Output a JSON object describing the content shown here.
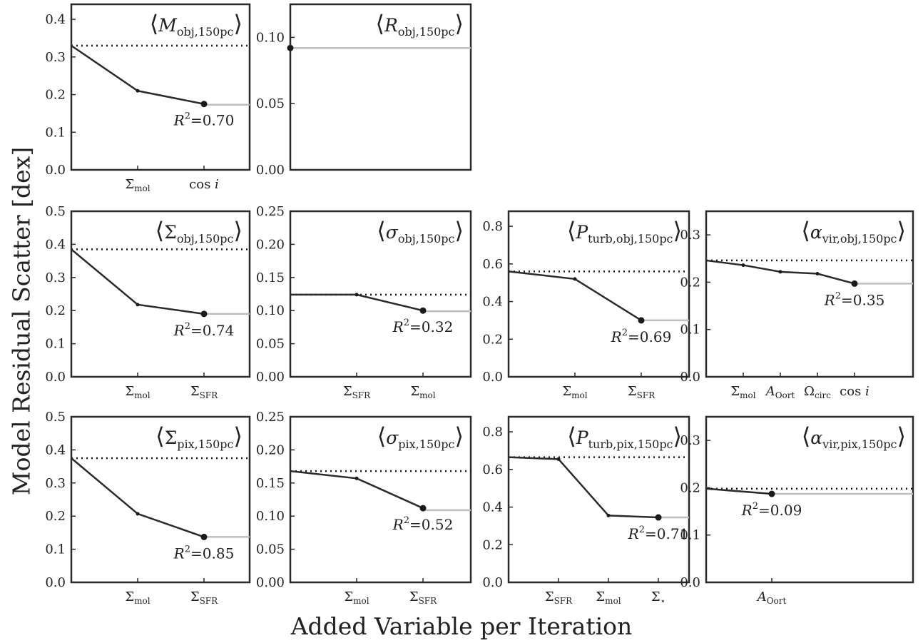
{
  "figure": {
    "ylabel": "Model Residual Scatter [dex]",
    "xlabel": "Added Variable per Iteration"
  },
  "chart_data": [
    {
      "type": "line",
      "title": {
        "base": "M",
        "italic": true,
        "sub": "obj,150pc"
      },
      "ylim": [
        0,
        0.44
      ],
      "yticks": [
        "0.0",
        "0.1",
        "0.2",
        "0.3",
        "0.4"
      ],
      "ytick_values": [
        0,
        0.1,
        0.2,
        0.3,
        0.4
      ],
      "xticklabels": [
        {
          "base": "Σ",
          "sub": "mol"
        },
        {
          "base": "cos",
          "italic_suffix": " i"
        }
      ],
      "x": [
        0,
        1,
        2
      ],
      "values": [
        0.33,
        0.21,
        0.175
      ],
      "baseline": 0.33,
      "tail_level": 0.173,
      "annotation": "0.70"
    },
    {
      "type": "line",
      "title": {
        "base": "R",
        "italic": true,
        "sub": "obj,150pc"
      },
      "ylim": [
        0,
        0.125
      ],
      "yticks": [
        "0.00",
        "0.05",
        "0.10"
      ],
      "ytick_values": [
        0,
        0.05,
        0.1
      ],
      "xticklabels": [],
      "x": [
        0
      ],
      "values": [
        0.092
      ],
      "baseline": 0.092,
      "tail_level": 0.092,
      "annotation": ""
    },
    {
      "type": "line",
      "title": {
        "base": "Σ",
        "italic": false,
        "sub": "obj,150pc"
      },
      "ylim": [
        0,
        0.5
      ],
      "yticks": [
        "0.0",
        "0.1",
        "0.2",
        "0.3",
        "0.4",
        "0.5"
      ],
      "ytick_values": [
        0,
        0.1,
        0.2,
        0.3,
        0.4,
        0.5
      ],
      "xticklabels": [
        {
          "base": "Σ",
          "sub": "mol"
        },
        {
          "base": "Σ",
          "sub": "SFR"
        }
      ],
      "x": [
        0,
        1,
        2
      ],
      "values": [
        0.385,
        0.218,
        0.19
      ],
      "baseline": 0.385,
      "tail_level": 0.19,
      "annotation": "0.74"
    },
    {
      "type": "line",
      "title": {
        "base": "σ",
        "italic": true,
        "sub": "obj,150pc"
      },
      "ylim": [
        0,
        0.25
      ],
      "yticks": [
        "0.00",
        "0.05",
        "0.10",
        "0.15",
        "0.20",
        "0.25"
      ],
      "ytick_values": [
        0,
        0.05,
        0.1,
        0.15,
        0.2,
        0.25
      ],
      "xticklabels": [
        {
          "base": "Σ",
          "sub": "SFR"
        },
        {
          "base": "Σ",
          "sub": "mol"
        }
      ],
      "x": [
        0,
        1,
        2
      ],
      "values": [
        0.124,
        0.124,
        0.1
      ],
      "baseline": 0.124,
      "tail_level": 0.099,
      "annotation": "0.32"
    },
    {
      "type": "line",
      "title": {
        "base": "P",
        "italic": true,
        "sub": "turb,obj,150pc"
      },
      "ylim": [
        0,
        0.88
      ],
      "yticks": [
        "0.0",
        "0.2",
        "0.4",
        "0.6",
        "0.8"
      ],
      "ytick_values": [
        0,
        0.2,
        0.4,
        0.6,
        0.8
      ],
      "xticklabels": [
        {
          "base": "Σ",
          "sub": "mol"
        },
        {
          "base": "Σ",
          "sub": "SFR"
        }
      ],
      "x": [
        0,
        1,
        2
      ],
      "values": [
        0.56,
        0.52,
        0.3
      ],
      "baseline": 0.56,
      "tail_level": 0.3,
      "annotation": "0.69"
    },
    {
      "type": "line",
      "title": {
        "base": "α",
        "italic": true,
        "sub": "vir,obj,150pc"
      },
      "ylim": [
        0,
        0.35
      ],
      "yticks": [
        "0.0",
        "0.1",
        "0.2",
        "0.3"
      ],
      "ytick_values": [
        0,
        0.1,
        0.2,
        0.3
      ],
      "xticklabels": [
        {
          "base": "Σ",
          "sub": "mol"
        },
        {
          "base": "A",
          "italic": true,
          "sub": "Oort"
        },
        {
          "base": "Ω",
          "sub": "circ"
        },
        {
          "base": "cos",
          "italic_suffix": " i"
        }
      ],
      "x": [
        0,
        1,
        2,
        3,
        4
      ],
      "values": [
        0.246,
        0.236,
        0.222,
        0.218,
        0.197
      ],
      "baseline": 0.246,
      "tail_level": 0.197,
      "annotation": "0.35"
    },
    {
      "type": "line",
      "title": {
        "base": "Σ",
        "italic": false,
        "sub": "pix,150pc"
      },
      "ylim": [
        0,
        0.5
      ],
      "yticks": [
        "0.0",
        "0.1",
        "0.2",
        "0.3",
        "0.4",
        "0.5"
      ],
      "ytick_values": [
        0,
        0.1,
        0.2,
        0.3,
        0.4,
        0.5
      ],
      "xticklabels": [
        {
          "base": "Σ",
          "sub": "mol"
        },
        {
          "base": "Σ",
          "sub": "SFR"
        }
      ],
      "x": [
        0,
        1,
        2
      ],
      "values": [
        0.375,
        0.207,
        0.137
      ],
      "baseline": 0.375,
      "tail_level": 0.137,
      "annotation": "0.85"
    },
    {
      "type": "line",
      "title": {
        "base": "σ",
        "italic": true,
        "sub": "pix,150pc"
      },
      "ylim": [
        0,
        0.25
      ],
      "yticks": [
        "0.00",
        "0.05",
        "0.10",
        "0.15",
        "0.20",
        "0.25"
      ],
      "ytick_values": [
        0,
        0.05,
        0.1,
        0.15,
        0.2,
        0.25
      ],
      "xticklabels": [
        {
          "base": "Σ",
          "sub": "mol"
        },
        {
          "base": "Σ",
          "sub": "SFR"
        }
      ],
      "x": [
        0,
        1,
        2
      ],
      "values": [
        0.168,
        0.157,
        0.112
      ],
      "baseline": 0.168,
      "tail_level": 0.109,
      "annotation": "0.52"
    },
    {
      "type": "line",
      "title": {
        "base": "P",
        "italic": true,
        "sub": "turb,pix,150pc"
      },
      "ylim": [
        0,
        0.88
      ],
      "yticks": [
        "0.0",
        "0.2",
        "0.4",
        "0.6",
        "0.8"
      ],
      "ytick_values": [
        0,
        0.2,
        0.4,
        0.6,
        0.8
      ],
      "xticklabels": [
        {
          "base": "Σ",
          "sub": "SFR"
        },
        {
          "base": "Σ",
          "sub": "mol"
        },
        {
          "base": "Σ",
          "sub": "⋆"
        }
      ],
      "x": [
        0,
        1,
        2,
        3
      ],
      "values": [
        0.665,
        0.655,
        0.355,
        0.345
      ],
      "baseline": 0.665,
      "tail_level": 0.345,
      "annotation": "0.71"
    },
    {
      "type": "line",
      "title": {
        "base": "α",
        "italic": true,
        "sub": "vir,pix,150pc"
      },
      "ylim": [
        0,
        0.35
      ],
      "yticks": [
        "0.0",
        "0.1",
        "0.2",
        "0.3"
      ],
      "ytick_values": [
        0,
        0.1,
        0.2,
        0.3
      ],
      "xticklabels": [
        {
          "base": "A",
          "italic": true,
          "sub": "Oort"
        }
      ],
      "x": [
        0,
        1
      ],
      "values": [
        0.198,
        0.187
      ],
      "baseline": 0.198,
      "tail_level": 0.187,
      "annotation": "0.09"
    }
  ]
}
